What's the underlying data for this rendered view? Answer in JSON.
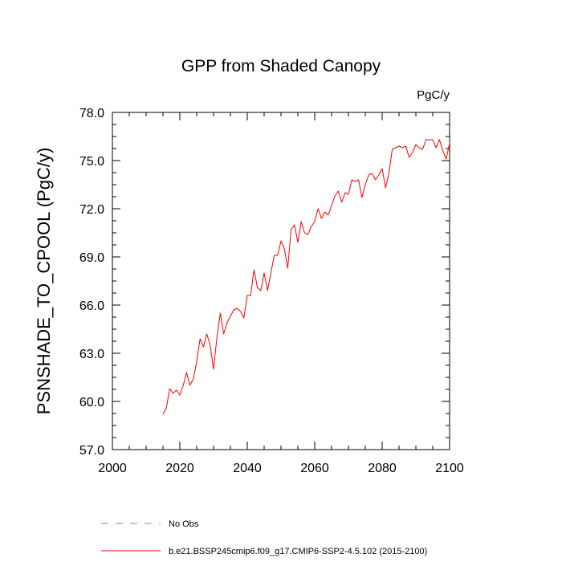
{
  "chart_data": {
    "type": "line",
    "title": "GPP from Shaded Canopy",
    "units_label": "PgC/y",
    "xlabel": "",
    "ylabel": "PSNSHADE_TO_CPOOL  (PgC/y)",
    "xlim": [
      2000,
      2100
    ],
    "ylim": [
      57.0,
      78.0
    ],
    "x_ticks": [
      2000,
      2020,
      2040,
      2060,
      2080,
      2100
    ],
    "x_tick_labels": [
      "2000",
      "2020",
      "2040",
      "2060",
      "2080",
      "2100"
    ],
    "y_ticks": [
      57,
      60,
      63,
      66,
      69,
      72,
      75,
      78
    ],
    "y_tick_labels": [
      "57.0",
      "60.0",
      "63.0",
      "66.0",
      "69.0",
      "72.0",
      "75.0",
      "78.0"
    ],
    "series": [
      {
        "name": "b.e21.BSSP245cmip6.f09_g17.CMIP6-SSP2-4.5.102 (2015-2100)",
        "color": "#ff0000",
        "style": "solid",
        "x": [
          2015,
          2016,
          2017,
          2018,
          2019,
          2020,
          2021,
          2022,
          2023,
          2024,
          2025,
          2026,
          2027,
          2028,
          2029,
          2030,
          2031,
          2032,
          2033,
          2034,
          2035,
          2036,
          2037,
          2038,
          2039,
          2040,
          2041,
          2042,
          2043,
          2044,
          2045,
          2046,
          2047,
          2048,
          2049,
          2050,
          2051,
          2052,
          2053,
          2054,
          2055,
          2056,
          2057,
          2058,
          2059,
          2060,
          2061,
          2062,
          2063,
          2064,
          2065,
          2066,
          2067,
          2068,
          2069,
          2070,
          2071,
          2072,
          2073,
          2074,
          2075,
          2076,
          2077,
          2078,
          2079,
          2080,
          2081,
          2082,
          2083,
          2084,
          2085,
          2086,
          2087,
          2088,
          2089,
          2090,
          2091,
          2092,
          2093,
          2094,
          2095,
          2096,
          2097,
          2098,
          2099,
          2100
        ],
        "values": [
          59.2,
          59.6,
          60.8,
          60.5,
          60.7,
          60.4,
          61.0,
          61.8,
          61.0,
          61.4,
          62.5,
          63.9,
          63.4,
          64.2,
          63.5,
          62.0,
          64.0,
          65.5,
          64.2,
          64.9,
          65.3,
          65.7,
          65.8,
          65.6,
          65.2,
          66.6,
          66.6,
          68.2,
          67.1,
          66.9,
          68.0,
          66.9,
          68.0,
          69.1,
          69.1,
          70.0,
          69.5,
          68.3,
          70.7,
          71.0,
          69.9,
          71.2,
          70.5,
          70.4,
          70.9,
          71.2,
          72.0,
          71.4,
          71.8,
          71.6,
          72.2,
          72.8,
          73.1,
          72.4,
          73.0,
          72.9,
          73.8,
          73.7,
          73.8,
          72.7,
          73.5,
          74.1,
          74.2,
          73.8,
          74.1,
          74.5,
          73.3,
          74.2,
          75.7,
          75.8,
          75.9,
          75.8,
          75.9,
          75.2,
          75.5,
          76.0,
          75.8,
          75.7,
          76.3,
          76.3,
          76.3,
          75.8,
          76.3,
          75.6,
          75.1,
          76.1
        ]
      },
      {
        "name": "No Obs",
        "color": "#8080ff",
        "style": "dashed",
        "x": [],
        "values": []
      }
    ],
    "legend_position": "bottom"
  }
}
